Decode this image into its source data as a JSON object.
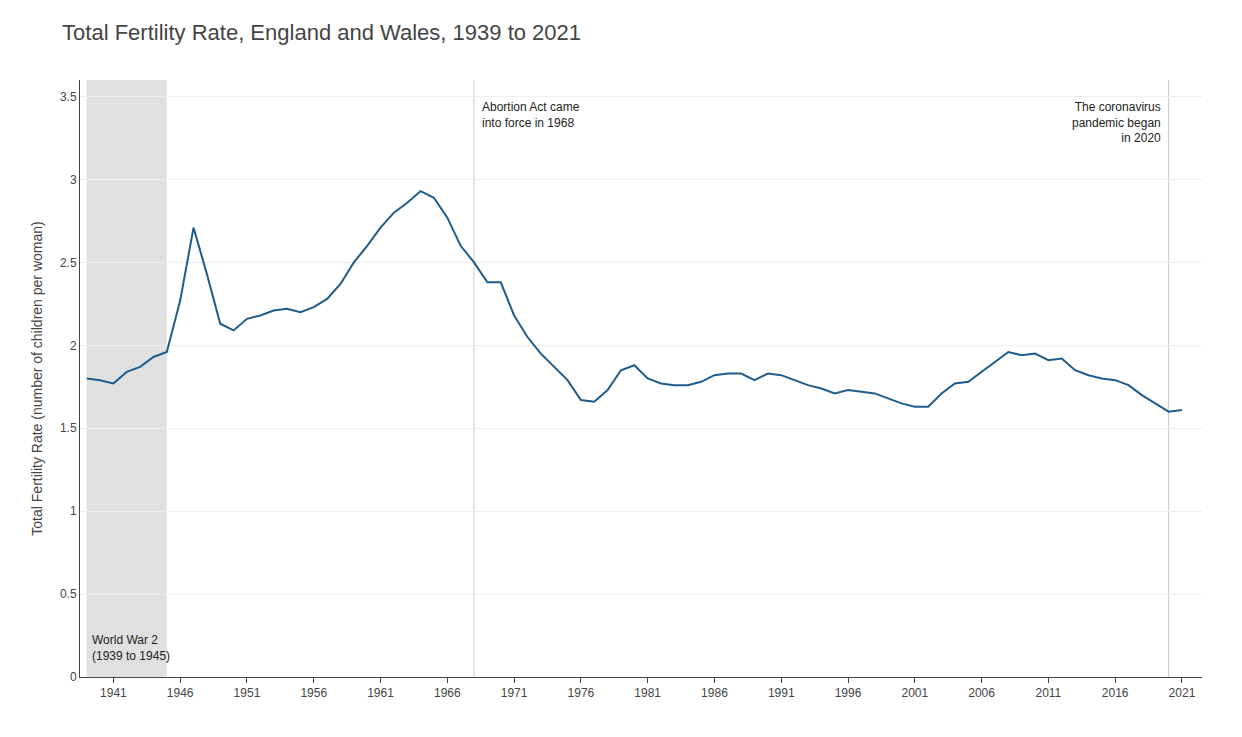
{
  "chart_data": {
    "type": "line",
    "title": "Total Fertility Rate, England and Wales, 1939 to 2021",
    "ylabel": "Total Fertility Rate (number of children per woman)",
    "color": "#1f5c8b",
    "grid": true,
    "xlim": [
      1938.5,
      2022.5
    ],
    "xticks": [
      1941,
      1946,
      1951,
      1956,
      1961,
      1966,
      1971,
      1976,
      1981,
      1986,
      1991,
      1996,
      2001,
      2006,
      2011,
      2016,
      2021
    ],
    "ylim": [
      0,
      3.6
    ],
    "yticks": [
      0,
      0.5,
      1,
      1.5,
      2,
      2.5,
      3,
      3.5
    ],
    "shaded_region": {
      "x": [
        1939,
        1945
      ],
      "color": "#e0e0e0",
      "label": "World War 2\n(1939 to 1945)"
    },
    "vlines": [
      {
        "x": 1968,
        "color": "#cccccc",
        "label": "Abortion Act came\ninto force in 1968"
      },
      {
        "x": 2020,
        "color": "#cccccc",
        "label": "The coronavirus\npandemic began\nin 2020"
      }
    ],
    "x": [
      1939,
      1940,
      1941,
      1942,
      1943,
      1944,
      1945,
      1946,
      1947,
      1948,
      1949,
      1950,
      1951,
      1952,
      1953,
      1954,
      1955,
      1956,
      1957,
      1958,
      1959,
      1960,
      1961,
      1962,
      1963,
      1964,
      1965,
      1966,
      1967,
      1968,
      1969,
      1970,
      1971,
      1972,
      1973,
      1974,
      1975,
      1976,
      1977,
      1978,
      1979,
      1980,
      1981,
      1982,
      1983,
      1984,
      1985,
      1986,
      1987,
      1988,
      1989,
      1990,
      1991,
      1992,
      1993,
      1994,
      1995,
      1996,
      1997,
      1998,
      1999,
      2000,
      2001,
      2002,
      2003,
      2004,
      2005,
      2006,
      2007,
      2008,
      2009,
      2010,
      2011,
      2012,
      2013,
      2014,
      2015,
      2016,
      2017,
      2018,
      2019,
      2020,
      2021
    ],
    "values": [
      1.8,
      1.79,
      1.77,
      1.84,
      1.87,
      1.93,
      1.96,
      2.27,
      2.71,
      2.43,
      2.13,
      2.09,
      2.16,
      2.18,
      2.21,
      2.22,
      2.2,
      2.23,
      2.28,
      2.37,
      2.5,
      2.6,
      2.71,
      2.8,
      2.86,
      2.93,
      2.89,
      2.77,
      2.6,
      2.5,
      2.38,
      2.38,
      2.18,
      2.05,
      1.95,
      1.87,
      1.79,
      1.67,
      1.66,
      1.73,
      1.85,
      1.88,
      1.8,
      1.77,
      1.76,
      1.76,
      1.78,
      1.82,
      1.83,
      1.83,
      1.79,
      1.83,
      1.82,
      1.79,
      1.76,
      1.74,
      1.71,
      1.73,
      1.72,
      1.71,
      1.68,
      1.65,
      1.63,
      1.63,
      1.71,
      1.77,
      1.78,
      1.84,
      1.9,
      1.96,
      1.94,
      1.95,
      1.91,
      1.92,
      1.85,
      1.82,
      1.8,
      1.79,
      1.76,
      1.7,
      1.65,
      1.6,
      1.61
    ]
  }
}
